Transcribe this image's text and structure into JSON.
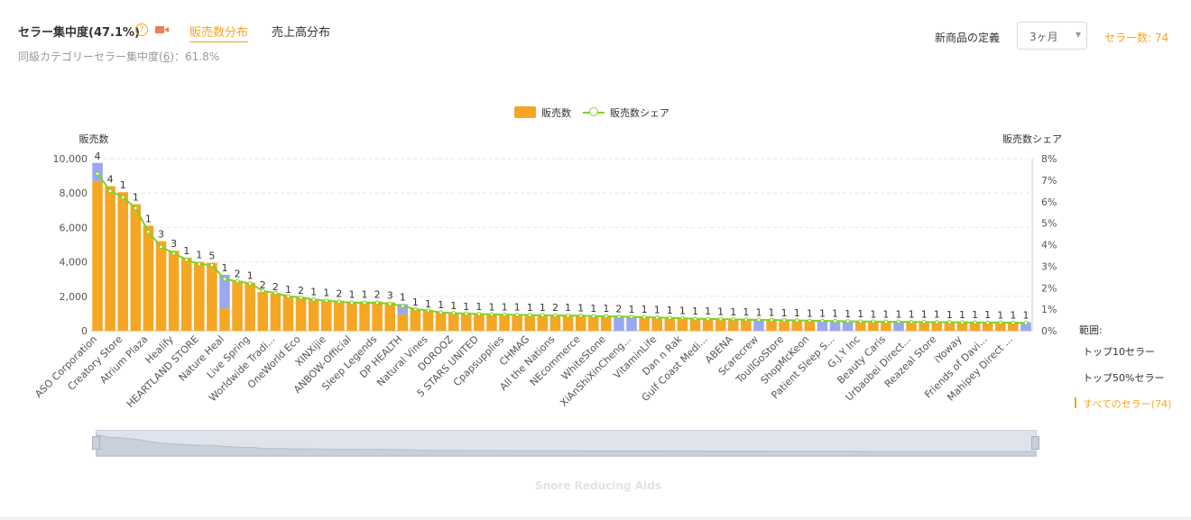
{
  "header": {
    "title": "セラー集中度(47.1%)",
    "help_glyph": "?",
    "tabs": [
      {
        "label": "販売数分布",
        "active": true
      },
      {
        "label": "売上高分布",
        "active": false
      }
    ],
    "subtitle_prefix": "同級カテゴリーセラー集中度(",
    "subtitle_num": "6",
    "subtitle_suffix": ")：61.8%",
    "new_product_label": "新商品の定義",
    "new_product_value": "3ヶ月",
    "seller_count": "セラー数: 74"
  },
  "legend": {
    "bar": "販売数",
    "line": "販売数シェア"
  },
  "range": {
    "label": "範囲:",
    "options": [
      "トップ10セラー",
      "トップ50%セラー",
      "すべてのセラー(74)"
    ],
    "selected": 2
  },
  "category": "Snore Reducing Aids",
  "colors": {
    "bar": "#f5a623",
    "bar_alt": "#9aa8f0",
    "line": "#7ed321",
    "accent": "#f5a623"
  },
  "chart_data": {
    "type": "bar",
    "ylabel": "販売数",
    "y2label": "販売数シェア",
    "ylim": [
      0,
      10000
    ],
    "y2lim": [
      0,
      8
    ],
    "yticks": [
      "10,000",
      "8,000",
      "6,000",
      "4,000",
      "2,000",
      "0"
    ],
    "y2ticks": [
      "8%",
      "7%",
      "6%",
      "5%",
      "4%",
      "3%",
      "2%",
      "1%",
      "0%"
    ],
    "xtick_labels": [
      "ASO Corporation",
      "Creatory Store",
      "Atrium Plaza",
      "Healify",
      "HEARTLAND STORE",
      "Nature Heal",
      "Live Spring",
      "Worldwide Tradi...",
      "OneWorld Eco",
      "XINXijie",
      "ANBOW-Official",
      "Sleep Legends",
      "DP HEALTH",
      "Natural Vines",
      "DOROOZ",
      "5 STARS UNITED",
      "Cpapsupplies",
      "CHMAG",
      "All the Nations",
      "NEcommerce",
      "WhiteStone",
      "XiAnShiXinCheng...",
      "VitaminLife",
      "Dan n Rak",
      "Gulf Coast Medi...",
      "ABENA",
      "Scarecrew",
      "ToullGoStore",
      "ShopMcKeon",
      "Patient Sleep S...",
      "G.J.Y Inc",
      "Beauty Caris",
      "Urbaobei Direct...",
      "Reazeal Store",
      "iYoway",
      "Friends of Davi...",
      "Mahipey Direct ..."
    ],
    "values": [
      9750,
      8400,
      8050,
      7350,
      6100,
      5200,
      4650,
      4250,
      4000,
      3950,
      3250,
      2900,
      2800,
      2250,
      2150,
      2000,
      1950,
      1850,
      1800,
      1750,
      1700,
      1700,
      1700,
      1650,
      1550,
      1250,
      1150,
      1100,
      1050,
      1000,
      1000,
      980,
      970,
      960,
      950,
      940,
      930,
      930,
      920,
      900,
      880,
      870,
      850,
      830,
      800,
      780,
      760,
      740,
      720,
      700,
      690,
      680,
      660,
      650,
      640,
      620,
      610,
      600,
      590,
      580,
      570,
      560,
      560,
      550,
      550,
      540,
      540,
      530,
      530,
      520,
      520,
      510,
      510,
      500
    ],
    "alt_values": [
      1050,
      0,
      0,
      0,
      0,
      0,
      0,
      0,
      0,
      0,
      1950,
      0,
      0,
      0,
      0,
      0,
      0,
      0,
      0,
      0,
      0,
      0,
      0,
      0,
      600,
      0,
      0,
      0,
      0,
      0,
      0,
      0,
      0,
      0,
      0,
      0,
      0,
      0,
      0,
      0,
      0,
      880,
      870,
      0,
      0,
      0,
      0,
      0,
      0,
      0,
      0,
      0,
      660,
      0,
      0,
      0,
      0,
      600,
      590,
      580,
      0,
      0,
      0,
      550,
      0,
      0,
      0,
      0,
      0,
      0,
      0,
      0,
      0,
      500
    ],
    "shares": [
      7.3,
      6.5,
      6.2,
      5.7,
      4.6,
      3.9,
      3.6,
      3.3,
      3.1,
      3.05,
      2.4,
      2.3,
      2.2,
      1.85,
      1.75,
      1.6,
      1.55,
      1.45,
      1.4,
      1.35,
      1.3,
      1.3,
      1.3,
      1.25,
      1.15,
      1.0,
      0.95,
      0.85,
      0.82,
      0.8,
      0.78,
      0.76,
      0.75,
      0.74,
      0.73,
      0.72,
      0.71,
      0.7,
      0.7,
      0.68,
      0.67,
      0.66,
      0.65,
      0.63,
      0.61,
      0.6,
      0.58,
      0.56,
      0.55,
      0.54,
      0.53,
      0.52,
      0.51,
      0.5,
      0.49,
      0.48,
      0.47,
      0.46,
      0.45,
      0.44,
      0.43,
      0.43,
      0.42,
      0.42,
      0.41,
      0.41,
      0.4,
      0.4,
      0.39,
      0.39,
      0.38,
      0.38,
      0.37,
      0.36
    ],
    "labels": [
      "4",
      "4",
      "1",
      "1",
      "1",
      "3",
      "3",
      "1",
      "1",
      "5",
      "1",
      "2",
      "1",
      "2",
      "2",
      "1",
      "2",
      "1",
      "1",
      "2",
      "1",
      "1",
      "2",
      "3",
      "1",
      "1",
      "1",
      "1",
      "1",
      "1",
      "1",
      "1",
      "1",
      "1",
      "1",
      "1",
      "2",
      "1",
      "1",
      "1",
      "1",
      "2",
      "1",
      "1",
      "1",
      "1",
      "1",
      "1",
      "1",
      "1",
      "1",
      "1",
      "1",
      "1",
      "1",
      "1",
      "1",
      "1",
      "1",
      "1",
      "1",
      "1",
      "1",
      "1",
      "1",
      "1",
      "1",
      "1",
      "1",
      "1",
      "1",
      "1",
      "1",
      "1"
    ],
    "grid": true,
    "legend_position": "top-center"
  }
}
